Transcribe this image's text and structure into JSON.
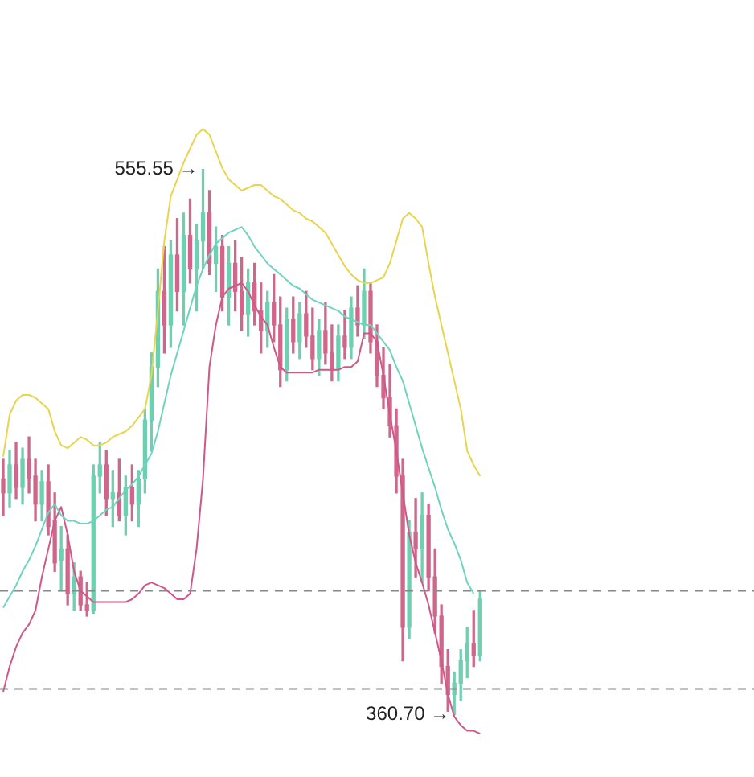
{
  "chart_data": {
    "type": "candlestick",
    "relative": false,
    "categories": [
      null,
      null,
      null,
      null,
      null,
      null,
      null,
      null,
      null,
      null,
      null,
      null,
      null,
      null,
      null,
      null,
      null,
      null,
      null,
      null,
      null,
      null,
      null,
      null,
      null,
      null,
      null,
      null,
      null,
      null,
      null,
      null,
      null,
      null,
      null,
      null,
      null,
      null,
      null,
      null,
      null,
      null,
      null,
      null,
      null,
      null,
      null,
      null,
      null,
      null,
      null,
      null,
      null,
      null,
      null,
      null,
      null,
      null,
      null,
      null,
      null,
      null,
      null,
      null,
      null,
      null,
      null,
      null,
      null,
      null,
      null,
      null,
      null,
      null,
      null,
      null,
      null,
      null,
      null,
      null,
      null,
      null,
      null,
      null,
      null,
      null,
      null,
      null,
      null,
      null,
      null,
      null,
      null,
      null,
      null,
      null,
      null,
      null,
      null,
      null,
      null,
      null,
      null,
      null,
      null,
      null,
      null,
      null,
      null,
      null,
      null,
      null,
      null,
      null,
      null,
      null,
      null
    ],
    "ohlc": [
      [
        445,
        452,
        432,
        440
      ],
      [
        440,
        455,
        435,
        450
      ],
      [
        450,
        458,
        438,
        442
      ],
      [
        442,
        456,
        436,
        452
      ],
      [
        452,
        460,
        440,
        445
      ],
      [
        446,
        452,
        430,
        436
      ],
      [
        436,
        448,
        430,
        444
      ],
      [
        444,
        450,
        425,
        428
      ],
      [
        430,
        440,
        412,
        415
      ],
      [
        416,
        428,
        405,
        420
      ],
      [
        420,
        425,
        400,
        404
      ],
      [
        404,
        415,
        398,
        410
      ],
      [
        410,
        412,
        398,
        400
      ],
      [
        400,
        408,
        396,
        398
      ],
      [
        398,
        450,
        397,
        446
      ],
      [
        446,
        458,
        440,
        450
      ],
      [
        450,
        455,
        432,
        438
      ],
      [
        438,
        448,
        428,
        440
      ],
      [
        440,
        452,
        430,
        432
      ],
      [
        432,
        446,
        425,
        442
      ],
      [
        442,
        450,
        430,
        436
      ],
      [
        436,
        448,
        428,
        445
      ],
      [
        445,
        470,
        440,
        466
      ],
      [
        466,
        490,
        455,
        485
      ],
      [
        485,
        520,
        478,
        512
      ],
      [
        512,
        528,
        490,
        500
      ],
      [
        500,
        530,
        492,
        525
      ],
      [
        525,
        538,
        505,
        512
      ],
      [
        512,
        540,
        500,
        532
      ],
      [
        532,
        545,
        515,
        520
      ],
      [
        520,
        536,
        505,
        530
      ],
      [
        530,
        555.55,
        520,
        540
      ],
      [
        540,
        548,
        518,
        522
      ],
      [
        522,
        535,
        512,
        528
      ],
      [
        528,
        532,
        505,
        510
      ],
      [
        510,
        528,
        500,
        522
      ],
      [
        522,
        530,
        505,
        512
      ],
      [
        512,
        524,
        498,
        504
      ],
      [
        504,
        520,
        496,
        515
      ],
      [
        515,
        522,
        500,
        505
      ],
      [
        505,
        515,
        490,
        498
      ],
      [
        498,
        512,
        492,
        508
      ],
      [
        508,
        518,
        494,
        500
      ],
      [
        500,
        510,
        478,
        484
      ],
      [
        484,
        506,
        480,
        502
      ],
      [
        502,
        510,
        490,
        494
      ],
      [
        494,
        508,
        488,
        504
      ],
      [
        504,
        512,
        492,
        496
      ],
      [
        496,
        506,
        484,
        488
      ],
      [
        488,
        502,
        482,
        498
      ],
      [
        498,
        508,
        486,
        490
      ],
      [
        490,
        500,
        480,
        484
      ],
      [
        484,
        500,
        480,
        496
      ],
      [
        496,
        505,
        488,
        492
      ],
      [
        492,
        510,
        488,
        506
      ],
      [
        506,
        514,
        496,
        500
      ],
      [
        500,
        520,
        495,
        512
      ],
      [
        512,
        515,
        490,
        494
      ],
      [
        494,
        500,
        478,
        482
      ],
      [
        482,
        492,
        470,
        474
      ],
      [
        474,
        486,
        460,
        464
      ],
      [
        464,
        470,
        440,
        446
      ],
      [
        446,
        452,
        380,
        392
      ],
      [
        392,
        430,
        388,
        426
      ],
      [
        426,
        438,
        410,
        420
      ],
      [
        420,
        440,
        408,
        432
      ],
      [
        432,
        436,
        405,
        410
      ],
      [
        410,
        420,
        390,
        396
      ],
      [
        396,
        400,
        372,
        378
      ],
      [
        378,
        384,
        362,
        368
      ],
      [
        368,
        376,
        360.7,
        372
      ],
      [
        372,
        384,
        366,
        380
      ],
      [
        380,
        392,
        374,
        386
      ],
      [
        386,
        398,
        378,
        382
      ],
      [
        382,
        405,
        380,
        402
      ],
      null,
      null,
      null,
      null,
      null,
      null,
      null,
      null,
      null,
      null,
      null,
      null,
      null,
      null,
      null,
      null,
      null,
      null,
      null,
      null,
      null,
      null,
      null,
      null,
      null,
      null,
      null,
      null,
      null,
      null,
      null,
      null,
      null,
      null,
      null,
      null,
      null,
      null,
      null,
      null,
      null,
      null
    ],
    "colors": [
      "#d0668a",
      "#6fcfb0",
      "#d0668a",
      "#6fcfb0",
      "#d0668a",
      "#d0668a",
      "#6fcfb0",
      "#d0668a",
      "#d0668a",
      "#6fcfb0",
      "#d0668a",
      "#6fcfb0",
      "#d0668a",
      "#d0668a",
      "#6fcfb0",
      "#6fcfb0",
      "#d0668a",
      "#6fcfb0",
      "#d0668a",
      "#6fcfb0",
      "#d0668a",
      "#6fcfb0",
      "#6fcfb0",
      "#6fcfb0",
      "#6fcfb0",
      "#d0668a",
      "#6fcfb0",
      "#d0668a",
      "#6fcfb0",
      "#d0668a",
      "#6fcfb0",
      "#6fcfb0",
      "#d0668a",
      "#6fcfb0",
      "#d0668a",
      "#6fcfb0",
      "#d0668a",
      "#d0668a",
      "#6fcfb0",
      "#d0668a",
      "#d0668a",
      "#6fcfb0",
      "#d0668a",
      "#d0668a",
      "#6fcfb0",
      "#d0668a",
      "#6fcfb0",
      "#d0668a",
      "#d0668a",
      "#6fcfb0",
      "#d0668a",
      "#d0668a",
      "#6fcfb0",
      "#d0668a",
      "#6fcfb0",
      "#d0668a",
      "#6fcfb0",
      "#d0668a",
      "#d0668a",
      "#d0668a",
      "#d0668a",
      "#d0668a",
      "#d0668a",
      "#6fcfb0",
      "#d0668a",
      "#6fcfb0",
      "#d0668a",
      "#d0668a",
      "#d0668a",
      "#d0668a",
      "#6fcfb0",
      "#6fcfb0",
      "#6fcfb0",
      "#d0668a",
      "#6fcfb0",
      null,
      null,
      null,
      null,
      null,
      null,
      null,
      null,
      null,
      null,
      null,
      null,
      null,
      null,
      null,
      null,
      null,
      null,
      null,
      null,
      null,
      null,
      null,
      null,
      null,
      null,
      null,
      null,
      null,
      null,
      null,
      null,
      null,
      null,
      null,
      null,
      null,
      null,
      null,
      null,
      null,
      null
    ],
    "series": [
      {
        "type": "line",
        "color": "#e8d44d",
        "values": [
          453,
          468,
          473,
          475,
          475,
          474,
          472,
          470,
          462,
          457,
          456,
          458,
          460,
          459,
          457,
          457,
          458,
          460,
          461,
          462,
          464,
          467,
          470,
          482,
          505,
          530,
          546,
          552,
          558,
          563,
          568,
          570,
          568,
          562,
          556,
          552,
          550,
          548,
          549,
          550,
          550,
          548,
          546,
          545,
          543,
          541,
          540,
          538,
          537,
          535,
          533,
          529,
          525,
          521,
          518,
          516,
          515,
          515,
          516,
          517,
          522,
          530,
          538,
          540,
          538,
          535,
          522,
          510,
          500,
          490,
          480,
          470,
          455,
          450,
          446,
          null,
          null,
          null,
          null,
          null,
          null,
          null,
          null,
          null,
          null,
          null,
          null,
          null,
          null,
          null,
          null,
          null,
          null,
          null,
          null,
          null,
          null,
          null,
          null,
          null,
          null,
          null,
          null,
          null,
          null,
          null,
          null,
          null,
          null,
          null,
          null,
          null,
          null,
          null,
          null,
          null,
          null
        ]
      },
      {
        "type": "line",
        "color": "#6fd3c0",
        "values": [
          399,
          403,
          407,
          412,
          416,
          421,
          427,
          433,
          436,
          432,
          430,
          430,
          429,
          429,
          430,
          432,
          434,
          435,
          438,
          441,
          443,
          446,
          450,
          454,
          462,
          472,
          482,
          490,
          498,
          506,
          514,
          520,
          525,
          529,
          531,
          533,
          534,
          535,
          532,
          528,
          525,
          522,
          520,
          518,
          516,
          514,
          513,
          511,
          509,
          508,
          507,
          506,
          505,
          503,
          502,
          501,
          500,
          500,
          497,
          494,
          491,
          485,
          480,
          472,
          464,
          456,
          449,
          442,
          434,
          427,
          422,
          416,
          408,
          404,
          null,
          null,
          null,
          null,
          null,
          null,
          null,
          null,
          null,
          null,
          null,
          null,
          null,
          null,
          null,
          null,
          null,
          null,
          null,
          null,
          null,
          null,
          null,
          null,
          null,
          null,
          null,
          null,
          null,
          null,
          null,
          null,
          null,
          null,
          null,
          null,
          null,
          null,
          null,
          null,
          null,
          null,
          null
        ]
      },
      {
        "type": "line",
        "color": "#d0578a",
        "values": [
          369,
          378,
          385,
          390,
          393,
          398,
          410,
          420,
          430,
          435,
          425,
          412,
          405,
          403,
          401,
          401,
          401,
          401,
          401,
          401,
          402,
          404,
          407,
          408,
          407,
          406,
          404,
          402,
          402,
          404,
          420,
          445,
          485,
          500,
          510,
          513,
          514,
          515,
          512,
          507,
          503,
          500,
          492,
          485,
          483,
          483,
          483,
          483,
          483,
          484,
          484,
          484,
          484,
          485,
          485,
          487,
          497,
          497,
          494,
          482,
          468,
          455,
          440,
          425,
          415,
          408,
          400,
          390,
          380,
          368,
          360,
          357,
          355,
          355,
          354,
          null,
          null,
          null,
          null,
          null,
          null,
          null,
          null,
          null,
          null,
          null,
          null,
          null,
          null,
          null,
          null,
          null,
          null,
          null,
          null,
          null,
          null,
          null,
          null,
          null,
          null,
          null,
          null,
          null,
          null,
          null,
          null,
          null,
          null,
          null,
          null,
          null,
          null,
          null,
          null,
          null,
          null
        ]
      }
    ],
    "ref_lines": [
      {
        "axis": "y",
        "value": 405,
        "color": "#888888",
        "line_style": "dashed"
      },
      {
        "axis": "y",
        "value": 370,
        "color": "#888888",
        "line_style": "dashed"
      }
    ],
    "annotations": [
      "555.55 →",
      "360.70 →"
    ],
    "tick_labels": false
  }
}
